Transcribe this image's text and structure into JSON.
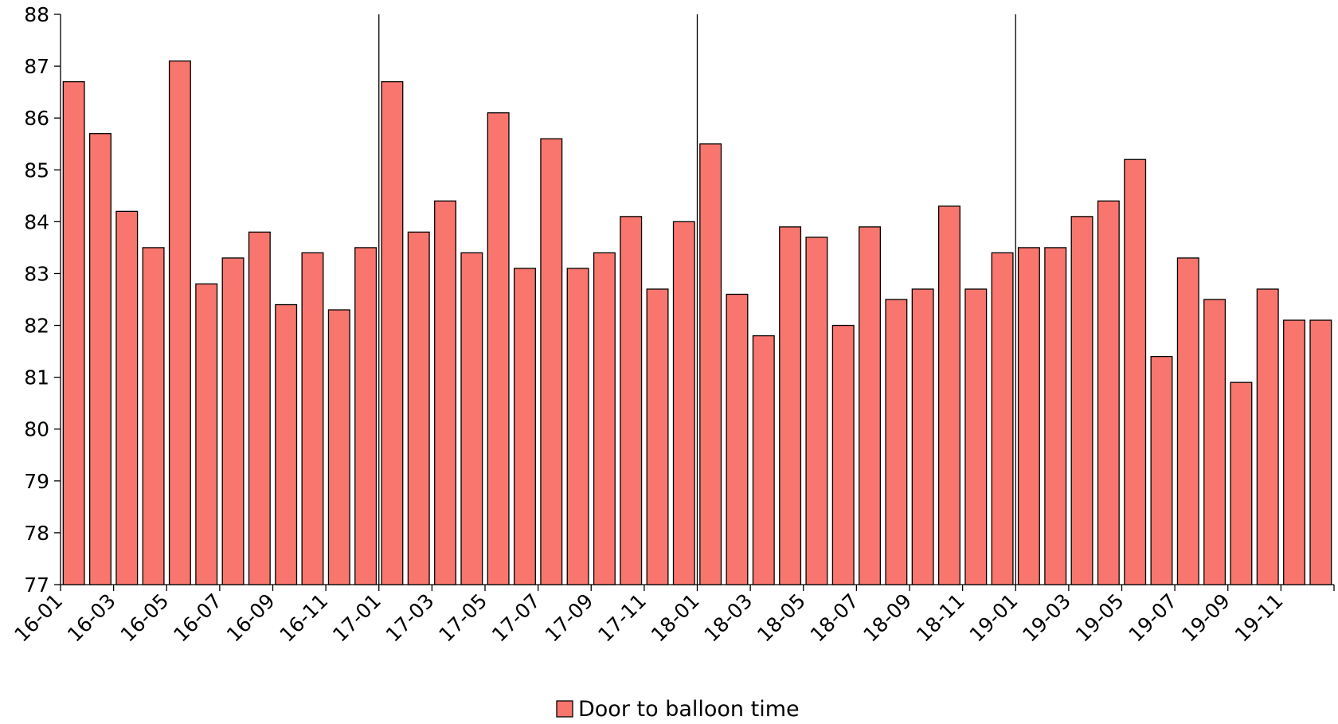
{
  "chart_data": {
    "type": "bar",
    "categories": [
      "16-01",
      "16-02",
      "16-03",
      "16-04",
      "16-05",
      "16-06",
      "16-07",
      "16-08",
      "16-09",
      "16-10",
      "16-11",
      "16-12",
      "17-01",
      "17-02",
      "17-03",
      "17-04",
      "17-05",
      "17-06",
      "17-07",
      "17-08",
      "17-09",
      "17-10",
      "17-11",
      "17-12",
      "18-01",
      "18-02",
      "18-03",
      "18-04",
      "18-05",
      "18-06",
      "18-07",
      "18-08",
      "18-09",
      "18-10",
      "18-11",
      "18-12",
      "19-01",
      "19-02",
      "19-03",
      "19-04",
      "19-05",
      "19-06",
      "19-07",
      "19-08",
      "19-09",
      "19-10",
      "19-11",
      "19-12"
    ],
    "x_tick_labels": [
      "16-01",
      "16-03",
      "16-05",
      "16-07",
      "16-09",
      "16-11",
      "17-01",
      "17-03",
      "17-05",
      "17-07",
      "17-09",
      "17-11",
      "18-01",
      "18-03",
      "18-05",
      "18-07",
      "18-09",
      "18-11",
      "19-01",
      "19-03",
      "19-05",
      "19-07",
      "19-09",
      "19-11"
    ],
    "series": [
      {
        "name": "Door to balloon time",
        "color": "#f8766d",
        "values": [
          86.7,
          85.7,
          84.2,
          83.5,
          87.1,
          82.8,
          83.3,
          83.8,
          82.4,
          83.4,
          82.3,
          83.5,
          86.7,
          83.8,
          84.4,
          83.4,
          86.1,
          83.1,
          85.6,
          83.1,
          83.4,
          84.1,
          82.7,
          84.0,
          85.5,
          82.6,
          81.8,
          83.9,
          83.7,
          82.0,
          83.9,
          82.5,
          82.7,
          84.3,
          82.7,
          83.4,
          83.5,
          83.5,
          84.1,
          84.4,
          85.2,
          81.4,
          83.3,
          82.5,
          80.9,
          82.7,
          82.1,
          82.1
        ]
      }
    ],
    "y_ticks": [
      77,
      78,
      79,
      80,
      81,
      82,
      83,
      84,
      85,
      86,
      87,
      88
    ],
    "ylim": [
      77,
      88
    ],
    "year_separators_after": [
      "16-12",
      "17-12",
      "18-12"
    ],
    "grid": false,
    "legend_position": "bottom-center"
  }
}
